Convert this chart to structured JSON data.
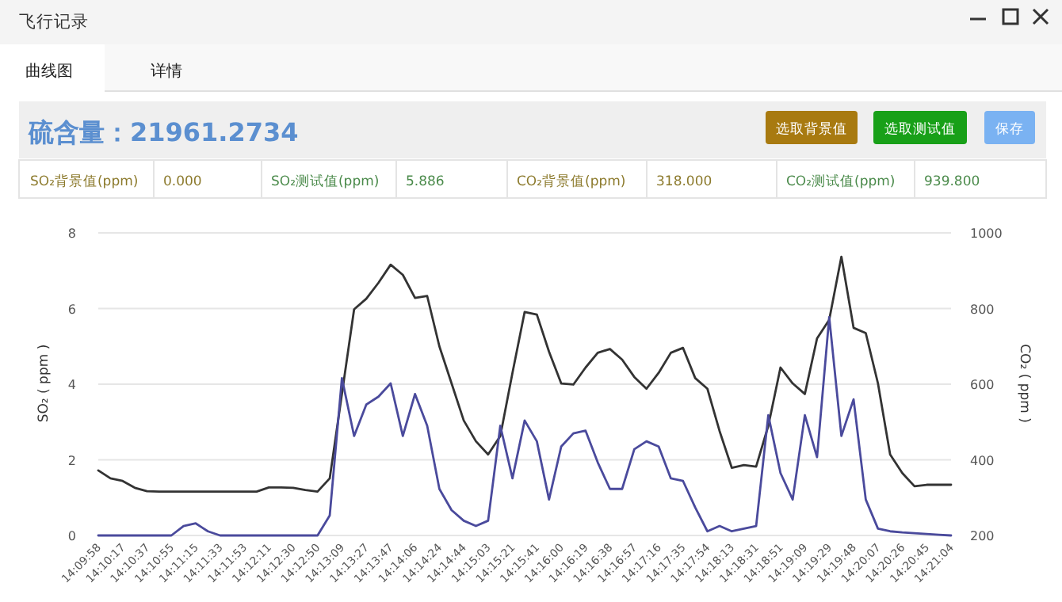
{
  "chart_data": {
    "type": "line",
    "title": "飞行记录",
    "subtitle": "硫含量：21961.2734",
    "annotations": [
      "曲线图",
      "详情",
      "选取背景值",
      "选取测试值",
      "保存",
      "SO₂背景值(ppm)",
      "0.000",
      "SO₂测试值(ppm)",
      "5.886",
      "CO₂背景值(ppm)",
      "318.000",
      "CO₂测试值(ppm)",
      "939.800"
    ],
    "categories": [
      "14:09:58",
      null,
      "14:10:17",
      null,
      "14:10:37",
      null,
      "14:10:55",
      null,
      "14:11:15",
      null,
      "14:11:33",
      null,
      "14:11:53",
      null,
      "14:12:11",
      null,
      "14:12:30",
      null,
      "14:12:50",
      null,
      "14:13:09",
      null,
      "14:13:27",
      null,
      "14:13:47",
      null,
      "14:14:06",
      null,
      "14:14:24",
      null,
      "14:14:44",
      null,
      "14:15:03",
      null,
      "14:15:21",
      null,
      "14:15:41",
      null,
      "14:16:00",
      null,
      "14:16:19",
      null,
      "14:16:38",
      null,
      "14:16:57",
      null,
      "14:17:16",
      null,
      "14:17:35",
      null,
      "14:17:54",
      null,
      "14:18:13",
      null,
      "14:18:31",
      null,
      "14:18:51",
      null,
      "14:19:09",
      null,
      "14:19:29",
      null,
      "14:19:48",
      null,
      "14:20:07",
      null,
      "14:20:26",
      null,
      "14:20:45",
      null,
      "14:21:04"
    ],
    "series": [
      {
        "color": "#333333",
        "axis": "y2",
        "values": [
          372,
          351,
          344,
          326,
          317,
          316,
          316,
          316,
          316,
          316,
          316,
          316,
          316,
          316,
          327,
          327,
          326,
          320,
          316,
          351,
          574,
          798,
          826,
          868,
          916,
          889,
          828,
          833,
          700,
          602,
          504,
          449,
          414,
          463,
          630,
          791,
          784,
          686,
          602,
          599,
          644,
          683,
          693,
          665,
          619,
          588,
          630,
          683,
          696,
          616,
          588,
          476,
          379,
          386,
          382,
          490,
          644,
          602,
          574,
          721,
          770,
          937,
          749,
          735,
          602,
          414,
          365,
          330,
          334,
          334,
          334
        ]
      },
      {
        "color": "#4a4a9c",
        "values": [
          0,
          0,
          0,
          0,
          0,
          0,
          0,
          0.25,
          0.32,
          0.11,
          0,
          0,
          0,
          0,
          0,
          0,
          0,
          0,
          0,
          0.53,
          4.16,
          2.63,
          3.46,
          3.67,
          4.02,
          2.63,
          3.74,
          2.9,
          1.23,
          0.67,
          0.39,
          0.25,
          0.39,
          2.9,
          1.51,
          3.04,
          2.49,
          0.95,
          2.35,
          2.7,
          2.77,
          1.93,
          1.23,
          1.23,
          2.28,
          2.49,
          2.35,
          1.51,
          1.44,
          0.74,
          0.11,
          0.25,
          0.11,
          0.18,
          0.25,
          3.18,
          1.65,
          0.95,
          3.18,
          2.07,
          5.77,
          2.63,
          3.6,
          0.95,
          0.18,
          0.11,
          0.08,
          0.06,
          0.04,
          0.02,
          0
        ]
      }
    ],
    "ylabel": "SO₂ ( ppm )",
    "y2label": "CO₂ ( ppm )",
    "ylim": [
      0,
      8
    ],
    "yticks": [
      0,
      2,
      4,
      6,
      8
    ],
    "y2lim": [
      200,
      1000
    ],
    "y2ticks": [
      200,
      400,
      600,
      800,
      1000
    ],
    "grid": "y",
    "marker": "none",
    "line_style": "solid"
  }
}
